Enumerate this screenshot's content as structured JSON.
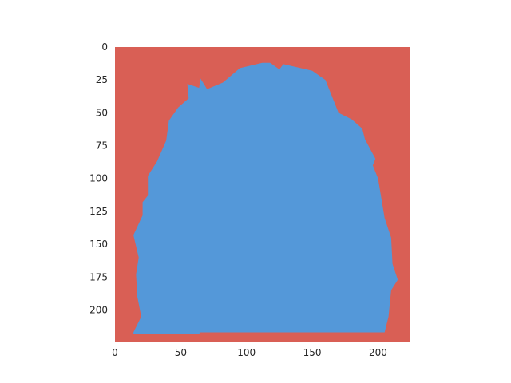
{
  "chart_data": {
    "type": "heatmap",
    "title": "",
    "xlabel": "",
    "ylabel": "",
    "xlim": [
      0,
      224
    ],
    "ylim": [
      224,
      0
    ],
    "y_axis_inverted": true,
    "grid": false,
    "legend": "none",
    "x_ticks": [
      0,
      50,
      100,
      150,
      200
    ],
    "x_tick_labels": [
      "0",
      "50",
      "100",
      "150",
      "200"
    ],
    "y_ticks": [
      0,
      25,
      50,
      75,
      100,
      125,
      150,
      175,
      200
    ],
    "y_tick_labels": [
      "0",
      "25",
      "50",
      "75",
      "100",
      "125",
      "150",
      "175",
      "200"
    ],
    "classes": [
      {
        "value": 0,
        "color": "#d95f55"
      },
      {
        "value": 1,
        "color": "#5498d9"
      }
    ],
    "mask_region_class": 1,
    "mask_outline": [
      [
        14,
        217
      ],
      [
        20,
        205
      ],
      [
        17,
        190
      ],
      [
        16,
        173
      ],
      [
        18,
        160
      ],
      [
        14,
        143
      ],
      [
        21,
        128
      ],
      [
        21,
        118
      ],
      [
        25,
        113
      ],
      [
        25,
        98
      ],
      [
        32,
        87
      ],
      [
        39,
        71
      ],
      [
        41,
        56
      ],
      [
        48,
        46
      ],
      [
        56,
        39
      ],
      [
        55,
        28
      ],
      [
        64,
        31
      ],
      [
        65,
        24
      ],
      [
        70,
        32
      ],
      [
        82,
        27
      ],
      [
        95,
        16
      ],
      [
        112,
        12
      ],
      [
        118,
        12
      ],
      [
        125,
        17
      ],
      [
        128,
        13
      ],
      [
        150,
        18
      ],
      [
        160,
        25
      ],
      [
        170,
        50
      ],
      [
        180,
        55
      ],
      [
        188,
        62
      ],
      [
        190,
        70
      ],
      [
        198,
        85
      ],
      [
        196,
        90
      ],
      [
        200,
        100
      ],
      [
        205,
        130
      ],
      [
        210,
        145
      ],
      [
        211,
        165
      ],
      [
        215,
        177
      ],
      [
        210,
        185
      ],
      [
        208,
        205
      ],
      [
        205,
        217
      ],
      [
        65,
        217
      ],
      [
        64,
        218
      ],
      [
        14,
        218
      ]
    ]
  }
}
